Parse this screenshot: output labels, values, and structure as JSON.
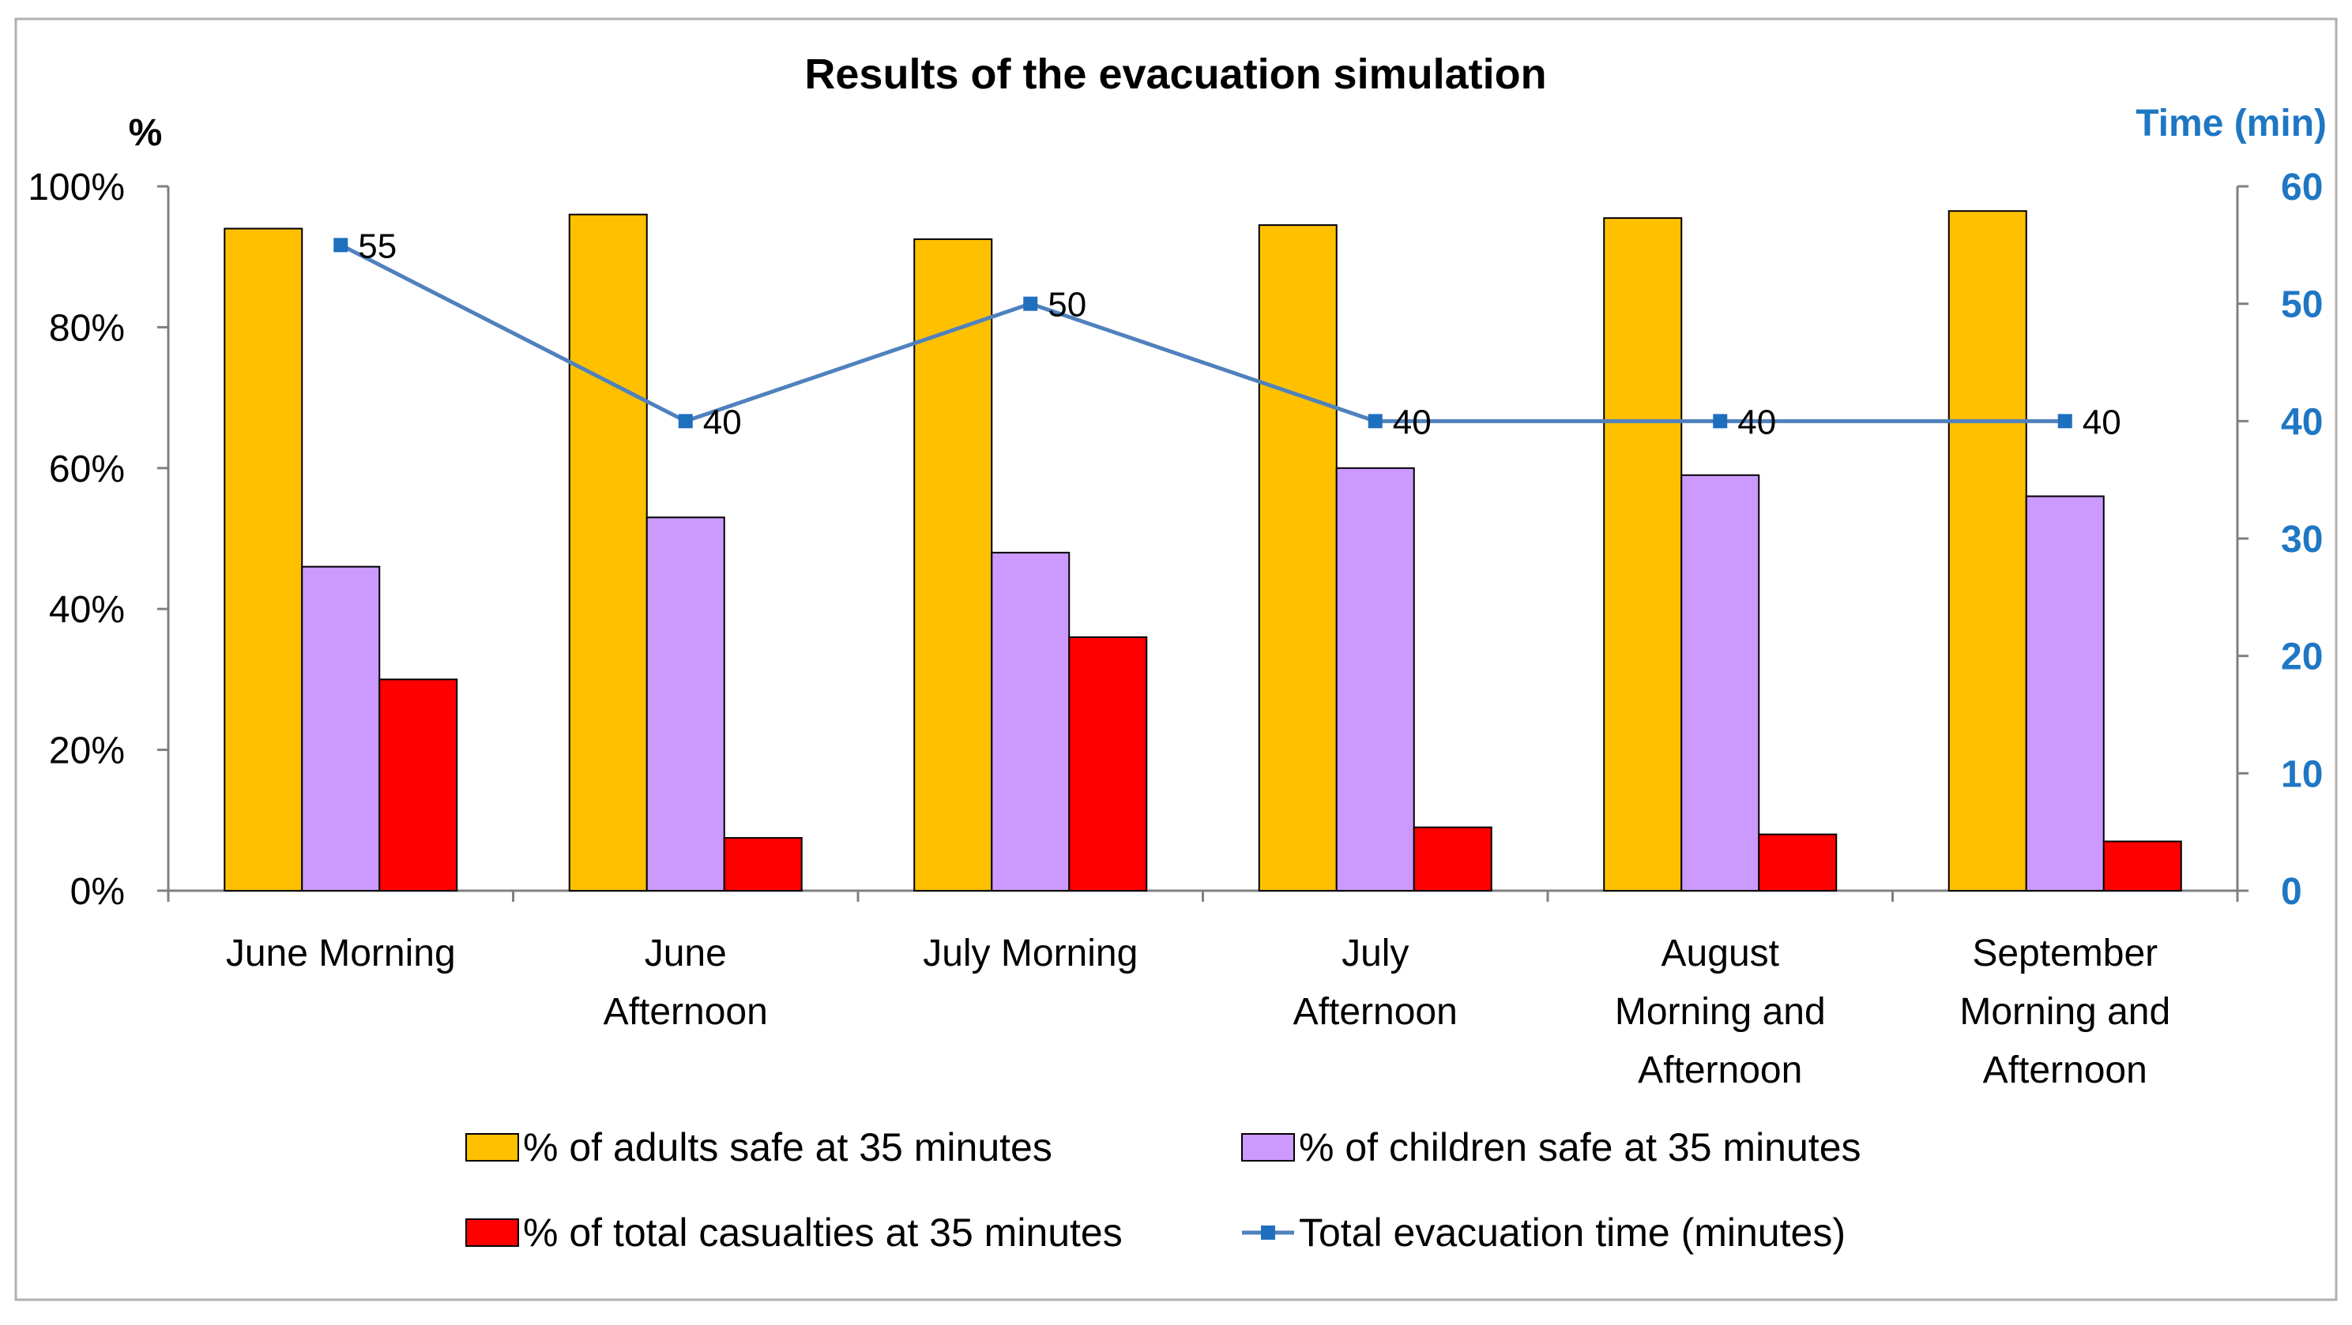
{
  "chart_data": {
    "type": "bar",
    "title": "Results of the evacuation simulation",
    "ylabel": "%",
    "y2label": "Time  (min)",
    "categories": [
      [
        "June Morning"
      ],
      [
        "June",
        "Afternoon"
      ],
      [
        "July Morning"
      ],
      [
        "July",
        "Afternoon"
      ],
      [
        "August",
        "Morning and",
        "Afternoon"
      ],
      [
        "September",
        "Morning and",
        "Afternoon"
      ]
    ],
    "ylim": [
      0,
      100
    ],
    "y2lim": [
      0,
      60
    ],
    "yticks": [
      "0%",
      "20%",
      "40%",
      "60%",
      "80%",
      "100%"
    ],
    "yticks_values": [
      0,
      20,
      40,
      60,
      80,
      100
    ],
    "y2ticks": [
      "0",
      "10",
      "20",
      "30",
      "40",
      "50",
      "60"
    ],
    "y2ticks_values": [
      0,
      10,
      20,
      30,
      40,
      50,
      60
    ],
    "series": [
      {
        "name": "% of adults safe at 35 minutes",
        "type": "bar",
        "axis": "left",
        "color": "#FFC000",
        "values": [
          94,
          96,
          92.5,
          94.5,
          95.5,
          96.5
        ]
      },
      {
        "name": "% of children safe at 35 minutes",
        "type": "bar",
        "axis": "left",
        "color": "#CC99FF",
        "values": [
          46,
          53,
          48,
          60,
          59,
          56
        ]
      },
      {
        "name": "% of total casualties at 35 minutes",
        "type": "bar",
        "axis": "left",
        "color": "#FF0000",
        "values": [
          30,
          7.5,
          36,
          9,
          8,
          7
        ]
      },
      {
        "name": "Total evacuation time (minutes)",
        "type": "line",
        "axis": "right",
        "color": "#4F81BD",
        "marker_color": "#1F6FBF",
        "values": [
          55,
          40,
          50,
          40,
          40,
          40
        ],
        "labels": [
          "55",
          "40",
          "50",
          "40",
          "40",
          "40"
        ]
      }
    ],
    "secondary_axis_color": "#1F77C4",
    "legend": "bottom"
  }
}
